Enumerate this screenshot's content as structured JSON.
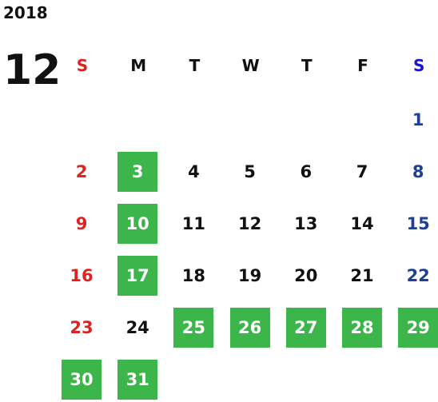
{
  "year": "2018",
  "month": "12",
  "weekdays": [
    "S",
    "M",
    "T",
    "W",
    "T",
    "F",
    "S"
  ],
  "weeks": [
    [
      null,
      null,
      null,
      null,
      null,
      null,
      {
        "day": "1",
        "highlighted": false
      }
    ],
    [
      {
        "day": "2",
        "highlighted": false
      },
      {
        "day": "3",
        "highlighted": true
      },
      {
        "day": "4",
        "highlighted": false
      },
      {
        "day": "5",
        "highlighted": false
      },
      {
        "day": "6",
        "highlighted": false
      },
      {
        "day": "7",
        "highlighted": false
      },
      {
        "day": "8",
        "highlighted": false
      }
    ],
    [
      {
        "day": "9",
        "highlighted": false
      },
      {
        "day": "10",
        "highlighted": true
      },
      {
        "day": "11",
        "highlighted": false
      },
      {
        "day": "12",
        "highlighted": false
      },
      {
        "day": "13",
        "highlighted": false
      },
      {
        "day": "14",
        "highlighted": false
      },
      {
        "day": "15",
        "highlighted": false
      }
    ],
    [
      {
        "day": "16",
        "highlighted": false
      },
      {
        "day": "17",
        "highlighted": true
      },
      {
        "day": "18",
        "highlighted": false
      },
      {
        "day": "19",
        "highlighted": false
      },
      {
        "day": "20",
        "highlighted": false
      },
      {
        "day": "21",
        "highlighted": false
      },
      {
        "day": "22",
        "highlighted": false
      }
    ],
    [
      {
        "day": "23",
        "highlighted": false
      },
      {
        "day": "24",
        "highlighted": false
      },
      {
        "day": "25",
        "highlighted": true
      },
      {
        "day": "26",
        "highlighted": true
      },
      {
        "day": "27",
        "highlighted": true
      },
      {
        "day": "28",
        "highlighted": true
      },
      {
        "day": "29",
        "highlighted": true
      }
    ],
    [
      {
        "day": "30",
        "highlighted": true
      },
      {
        "day": "31",
        "highlighted": true
      },
      null,
      null,
      null,
      null,
      null
    ]
  ]
}
